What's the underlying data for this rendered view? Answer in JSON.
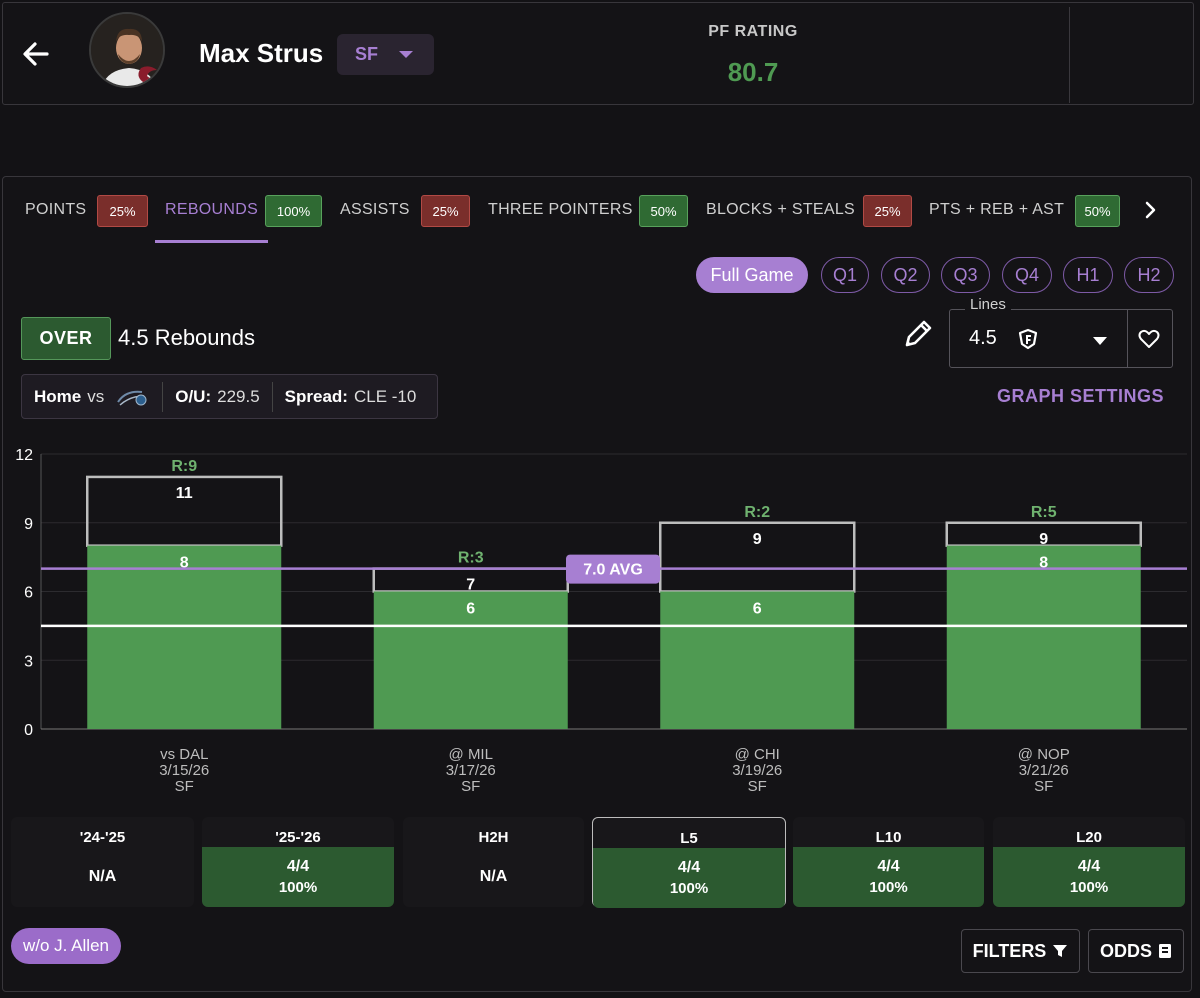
{
  "header": {
    "player_name": "Max Strus",
    "position": "SF",
    "rating_label": "PF RATING",
    "rating_value": "80.7"
  },
  "tabs": [
    {
      "label": "POINTS",
      "pct": "25%",
      "status": "red"
    },
    {
      "label": "REBOUNDS",
      "pct": "100%",
      "status": "green",
      "active": true
    },
    {
      "label": "ASSISTS",
      "pct": "25%",
      "status": "red"
    },
    {
      "label": "THREE POINTERS",
      "pct": "50%",
      "status": "green"
    },
    {
      "label": "BLOCKS + STEALS",
      "pct": "25%",
      "status": "red"
    },
    {
      "label": "PTS + REB + AST",
      "pct": "50%",
      "status": "green"
    }
  ],
  "periods": [
    "Full Game",
    "Q1",
    "Q2",
    "Q3",
    "Q4",
    "H1",
    "H2"
  ],
  "bet": {
    "side": "OVER",
    "line_text": "4.5 Rebounds",
    "lines_label": "Lines",
    "lines_value": "4.5"
  },
  "context": {
    "home_label": "Home",
    "vs": "vs",
    "ou_label": "O/U:",
    "ou_value": "229.5",
    "spread_label": "Spread:",
    "spread_value": "CLE -10"
  },
  "graph_settings": "GRAPH SETTINGS",
  "chart_data": {
    "type": "bar",
    "stat": "Rebounds",
    "categories": [
      {
        "opp": "vs DAL",
        "date": "3/15/26",
        "pos": "SF"
      },
      {
        "opp": "@ MIL",
        "date": "3/17/26",
        "pos": "SF"
      },
      {
        "opp": "@ CHI",
        "date": "3/19/26",
        "pos": "SF"
      },
      {
        "opp": "@ NOP",
        "date": "3/21/26",
        "pos": "SF"
      }
    ],
    "values": [
      8,
      6,
      6,
      8
    ],
    "outline_values": [
      11,
      7,
      9,
      9
    ],
    "top_labels": [
      "R:9",
      "R:3",
      "R:2",
      "R:5"
    ],
    "ylim": [
      0,
      12
    ],
    "yticks": [
      0,
      3,
      6,
      9,
      12
    ],
    "line": 4.5,
    "avg": 7.0,
    "avg_label": "7.0 AVG",
    "colors": {
      "bar": "#4f9a52",
      "avg": "#a77fd2",
      "line": "#ffffff",
      "outline": "#bdbdbd",
      "top_label": "#6fb26f"
    }
  },
  "splits": [
    {
      "label": "'24-'25",
      "value": "N/A",
      "pct": ""
    },
    {
      "label": "'25-'26",
      "value": "4/4",
      "pct": "100%"
    },
    {
      "label": "H2H",
      "value": "N/A",
      "pct": ""
    },
    {
      "label": "L5",
      "value": "4/4",
      "pct": "100%"
    },
    {
      "label": "L10",
      "value": "4/4",
      "pct": "100%"
    },
    {
      "label": "L20",
      "value": "4/4",
      "pct": "100%"
    }
  ],
  "footer": {
    "filter_chip": "w/o J. Allen",
    "filters_label": "FILTERS",
    "odds_label": "ODDS"
  }
}
